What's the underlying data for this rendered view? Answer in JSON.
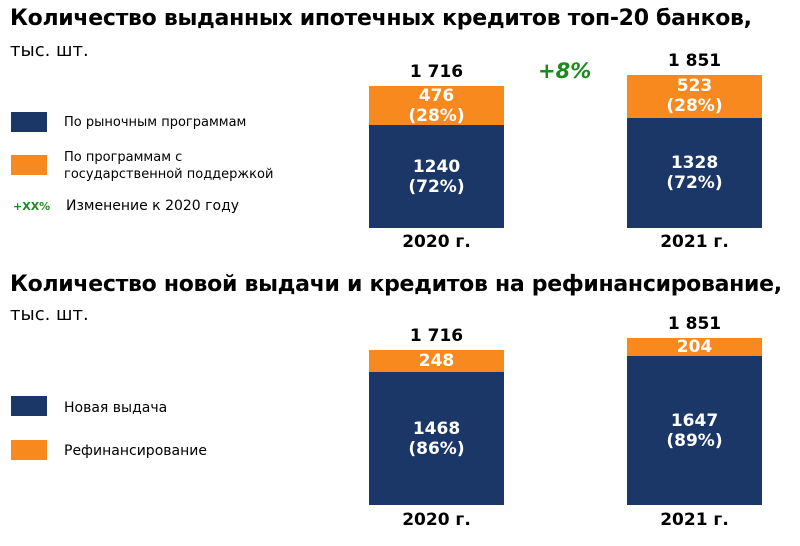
{
  "colors": {
    "navy": "#1a3768",
    "orange": "#f7891e",
    "green": "#1e8a1e"
  },
  "chart_data": [
    {
      "type": "bar",
      "stacked": true,
      "title": "Количество выданных ипотечных кредитов топ-20 банков,",
      "subtitle": "тыс. шт.",
      "categories": [
        "2020 г.",
        "2021 г."
      ],
      "totals": [
        "1 716",
        "1 851"
      ],
      "series": [
        {
          "name": "По рыночным программам",
          "color": "#1a3768",
          "values": [
            1240,
            1328
          ],
          "labels": [
            "1240\n(72%)",
            "1328\n(72%)"
          ]
        },
        {
          "name": "По программам с государственной поддержкой",
          "color": "#f7891e",
          "values": [
            476,
            523
          ],
          "labels": [
            "476\n(28%)",
            "523\n(28%)"
          ]
        }
      ],
      "change": "+8%",
      "legend_change": {
        "marker": "+XX%",
        "label": "Изменение к 2020 году"
      },
      "legend": "left"
    },
    {
      "type": "bar",
      "stacked": true,
      "title": "Количество новой выдачи и кредитов на рефинансирование,",
      "subtitle": "тыс. шт.",
      "categories": [
        "2020 г.",
        "2021 г."
      ],
      "totals": [
        "1 716",
        "1 851"
      ],
      "series": [
        {
          "name": "Новая выдача",
          "color": "#1a3768",
          "values": [
            1468,
            1647
          ],
          "labels": [
            "1468\n(86%)",
            "1647\n(89%)"
          ]
        },
        {
          "name": "Рефинансирование",
          "color": "#f7891e",
          "values": [
            248,
            204
          ],
          "labels": [
            "248",
            "204"
          ]
        }
      ],
      "legend": "left"
    }
  ]
}
